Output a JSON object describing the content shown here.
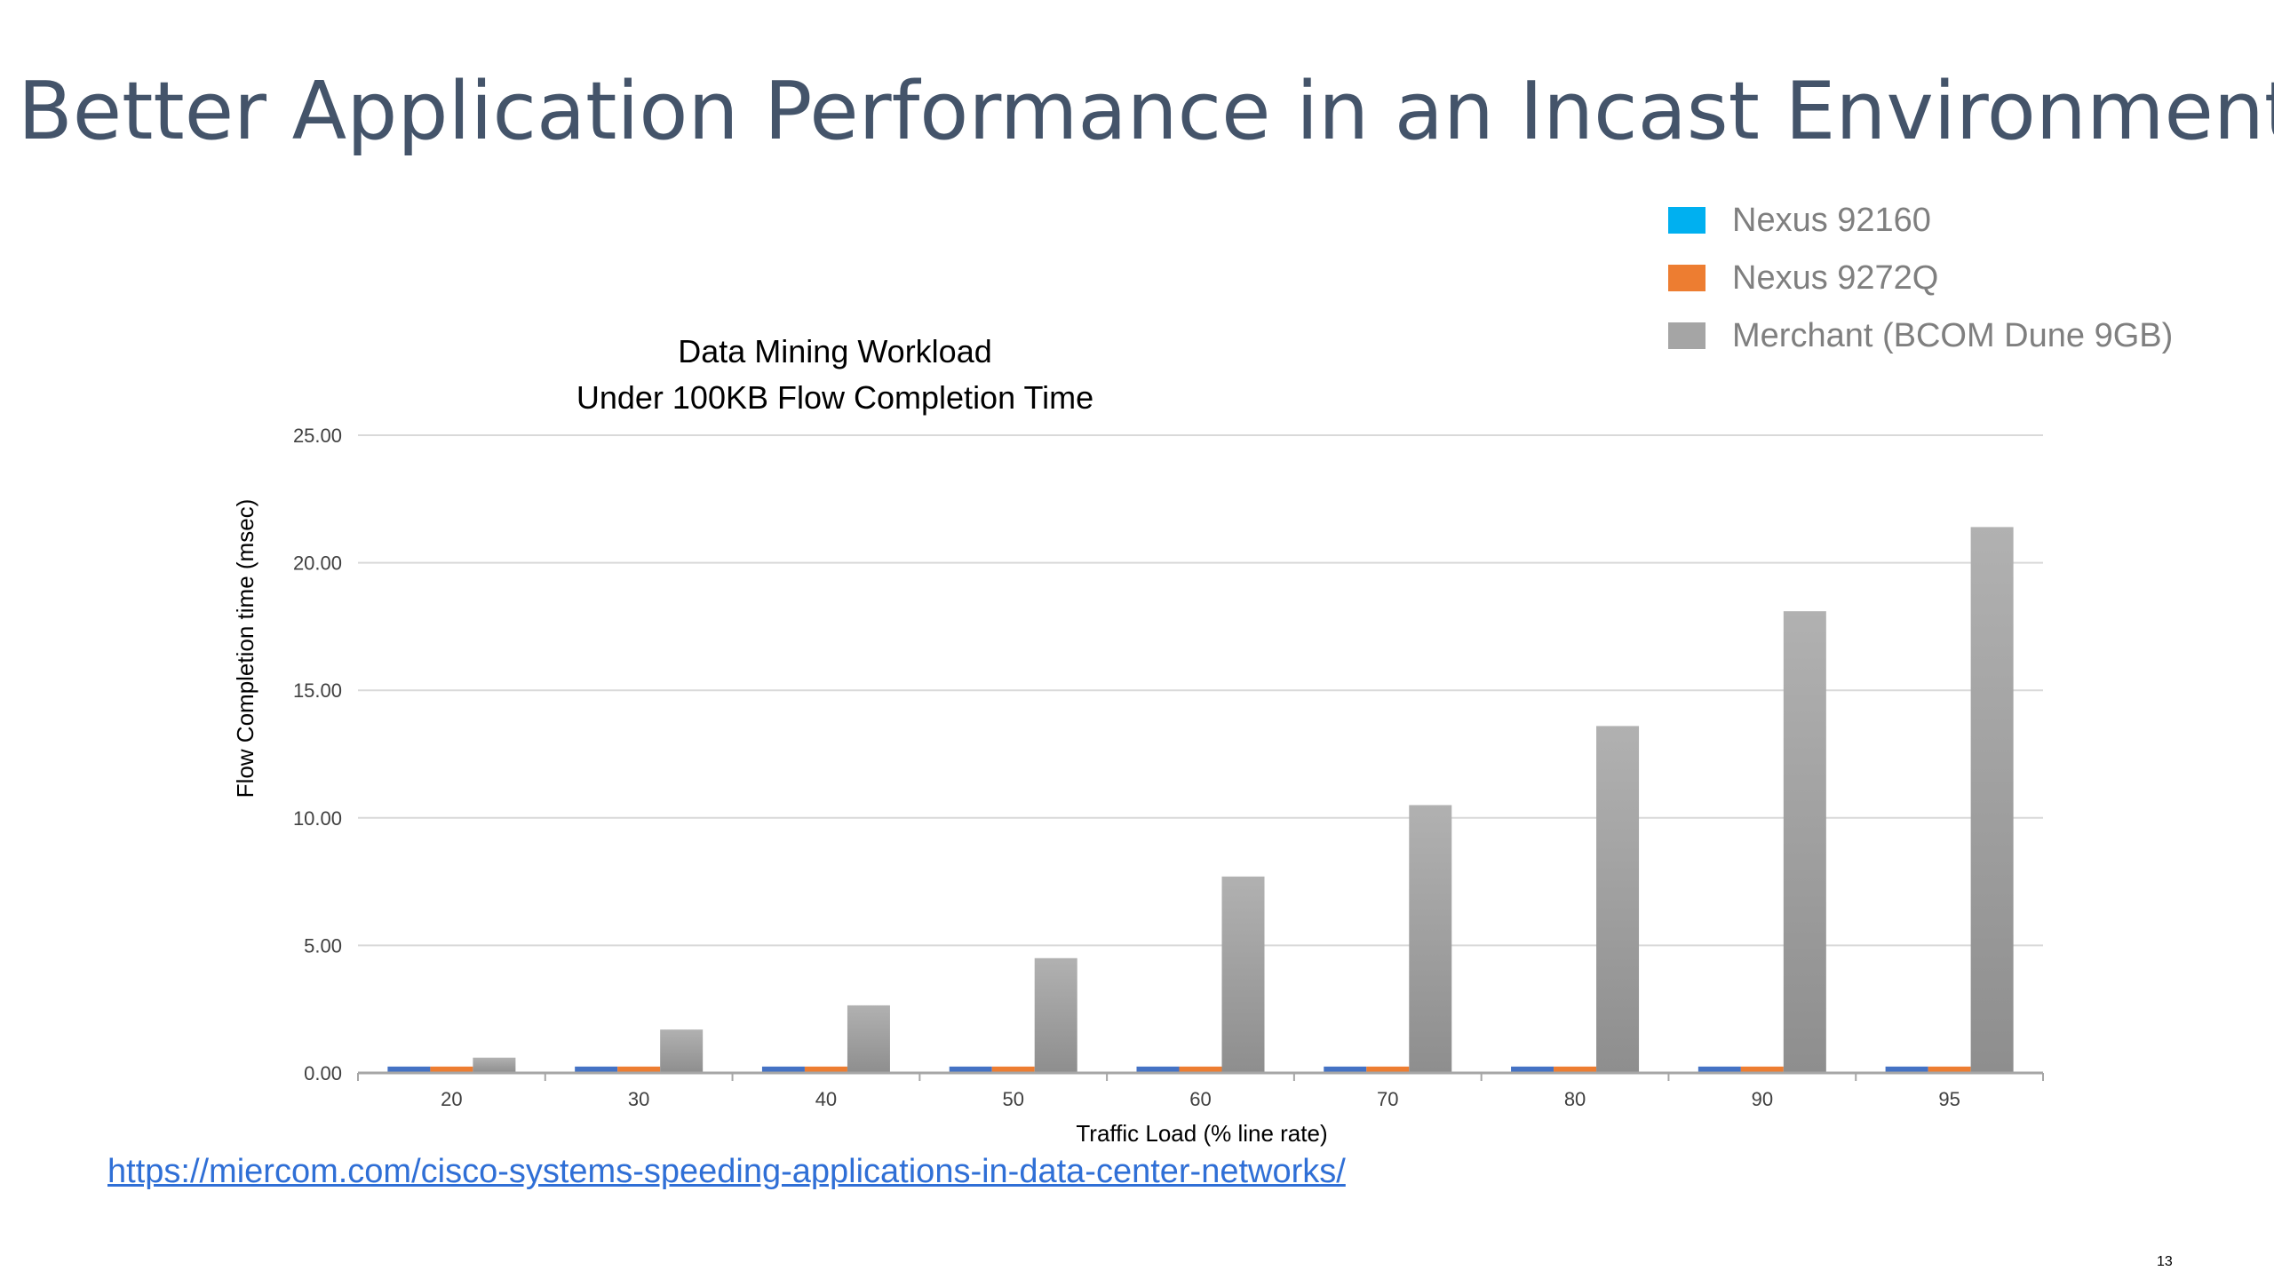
{
  "slide": {
    "title": "Better Application Performance in an Incast Environment",
    "source_url": "https://miercom.com/cisco-systems-speeding-applications-in-data-center-networks/",
    "page_number": "13"
  },
  "legend": [
    {
      "label": "Nexus 92160",
      "color": "#00b0f0"
    },
    {
      "label": "Nexus 9272Q",
      "color": "#ed7d31"
    },
    {
      "label": "Merchant (BCOM Dune 9GB)",
      "color": "#a5a5a5"
    }
  ],
  "chart_data": {
    "type": "bar",
    "title": "Data Mining Workload",
    "subtitle": "Under 100KB Flow Completion Time",
    "xlabel": "Traffic Load (% line rate)",
    "ylabel": "Flow Completion time (msec)",
    "categories": [
      "20",
      "30",
      "40",
      "50",
      "60",
      "70",
      "80",
      "90",
      "95"
    ],
    "ylim": [
      0,
      25
    ],
    "yticks": [
      "0.00",
      "5.00",
      "10.00",
      "15.00",
      "20.00",
      "25.00"
    ],
    "grid": true,
    "series": [
      {
        "name": "Nexus 92160",
        "color": "#4472c4",
        "values": [
          0.25,
          0.25,
          0.25,
          0.25,
          0.25,
          0.25,
          0.25,
          0.25,
          0.25
        ]
      },
      {
        "name": "Nexus 9272Q",
        "color": "#ed7d31",
        "values": [
          0.25,
          0.25,
          0.25,
          0.25,
          0.25,
          0.25,
          0.25,
          0.25,
          0.25
        ]
      },
      {
        "name": "Merchant (BCOM Dune 9GB)",
        "color": "#a5a5a5",
        "values": [
          0.6,
          1.7,
          2.65,
          4.5,
          7.7,
          10.5,
          13.6,
          18.1,
          21.4
        ]
      }
    ]
  }
}
